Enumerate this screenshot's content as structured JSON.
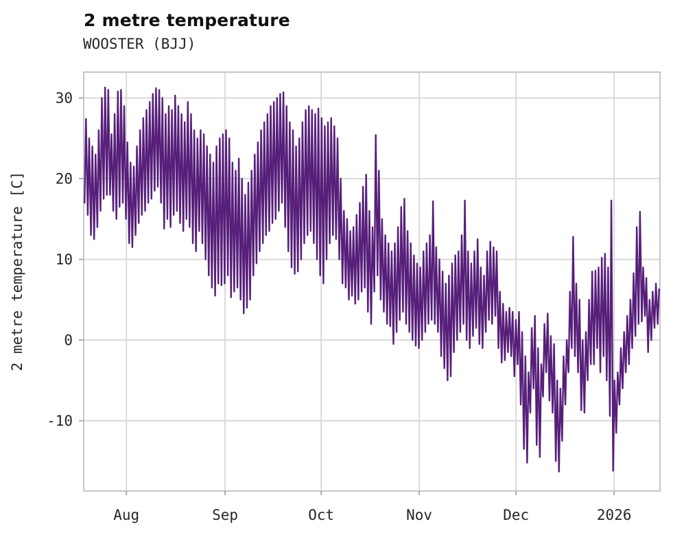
{
  "page": {
    "title": "2 metre temperature",
    "subtitle": "WOOSTER (BJJ)"
  },
  "chart_data": {
    "type": "line",
    "title": "2 metre temperature",
    "subtitle": "WOOSTER (BJJ)",
    "xlabel": "",
    "ylabel": "2 metre temperature [C]",
    "grid": true,
    "legend": "none",
    "line_color": "#571f7a",
    "grid_color": "#d9d9d9",
    "spine_color": "#c6c6c6",
    "tick_color": "#aaaaaa",
    "text_color": "#262626",
    "x_unit": "day index; day 0 = start of plotted period (~19 Jul 2025), ticks mark the 1st of each month, '2026' = 1 Jan 2026",
    "xlim_days": [
      0,
      181
    ],
    "ylim": [
      -18.7,
      33.2
    ],
    "x_tick_days": [
      13.4,
      44.4,
      74.6,
      105.4,
      135.8,
      166.6
    ],
    "x_tick_labels": [
      "Aug",
      "Sep",
      "Oct",
      "Nov",
      "Dec",
      "2026"
    ],
    "y_ticks": [
      30,
      20,
      10,
      0,
      -10
    ],
    "series": [
      {
        "name": "2 metre temperature [C]",
        "sampling": "estimated daily [min,max] envelope read from the plot; rendered as a diurnal zigzag",
        "daily_min_max": [
          [
            17,
            27.4
          ],
          [
            15.5,
            25
          ],
          [
            13,
            24
          ],
          [
            12.5,
            23
          ],
          [
            14,
            26
          ],
          [
            16,
            30
          ],
          [
            17.5,
            31.3
          ],
          [
            18,
            31
          ],
          [
            18,
            25.5
          ],
          [
            16,
            28
          ],
          [
            15,
            30.8
          ],
          [
            16.5,
            31
          ],
          [
            17,
            29
          ],
          [
            15,
            24.5
          ],
          [
            12,
            22
          ],
          [
            11.5,
            21.5
          ],
          [
            13,
            24
          ],
          [
            14.5,
            26
          ],
          [
            15.5,
            27.5
          ],
          [
            16,
            28.5
          ],
          [
            17,
            29.5
          ],
          [
            17.5,
            30.5
          ],
          [
            18.5,
            31.2
          ],
          [
            19,
            31
          ],
          [
            17,
            30
          ],
          [
            13.8,
            28
          ],
          [
            15,
            29
          ],
          [
            14,
            28.5
          ],
          [
            15.5,
            30.3
          ],
          [
            16,
            29
          ],
          [
            14.5,
            28
          ],
          [
            13.5,
            27
          ],
          [
            15,
            29.5
          ],
          [
            14,
            28
          ],
          [
            12,
            26
          ],
          [
            11,
            25
          ],
          [
            13.5,
            26
          ],
          [
            12,
            25.5
          ],
          [
            10,
            24
          ],
          [
            8,
            23
          ],
          [
            6.5,
            22
          ],
          [
            5.5,
            24
          ],
          [
            7,
            25
          ],
          [
            6.8,
            25.5
          ],
          [
            7,
            26
          ],
          [
            8,
            25
          ],
          [
            5.3,
            22
          ],
          [
            6,
            21
          ],
          [
            6.5,
            22.5
          ],
          [
            5,
            20
          ],
          [
            3.3,
            18
          ],
          [
            4,
            19.5
          ],
          [
            5,
            21
          ],
          [
            8,
            23
          ],
          [
            9.5,
            24.5
          ],
          [
            11,
            26
          ],
          [
            12,
            27
          ],
          [
            13,
            28
          ],
          [
            13.5,
            29
          ],
          [
            14.5,
            29.5
          ],
          [
            15,
            30
          ],
          [
            16,
            30.5
          ],
          [
            17,
            30.7
          ],
          [
            14,
            29
          ],
          [
            11,
            27
          ],
          [
            9,
            26
          ],
          [
            8.2,
            24
          ],
          [
            8.5,
            25
          ],
          [
            10,
            27
          ],
          [
            12,
            28.5
          ],
          [
            13,
            29
          ],
          [
            13.5,
            28.5
          ],
          [
            12,
            28
          ],
          [
            10,
            28.7
          ],
          [
            8,
            27.5
          ],
          [
            7,
            26.5
          ],
          [
            10,
            27
          ],
          [
            12,
            27.5
          ],
          [
            13,
            26.5
          ],
          [
            12.5,
            25
          ],
          [
            10,
            20
          ],
          [
            7,
            16
          ],
          [
            6.5,
            15
          ],
          [
            5,
            13.5
          ],
          [
            5.5,
            14
          ],
          [
            4.5,
            15.5
          ],
          [
            5,
            17
          ],
          [
            6,
            19
          ],
          [
            6.5,
            20.5
          ],
          [
            3.5,
            16
          ],
          [
            2,
            14
          ],
          [
            6,
            25.4
          ],
          [
            8,
            21
          ],
          [
            5,
            15
          ],
          [
            3.5,
            13
          ],
          [
            2,
            12
          ],
          [
            1.7,
            11
          ],
          [
            -0.5,
            12
          ],
          [
            1,
            14
          ],
          [
            2.5,
            16.5
          ],
          [
            3.5,
            17.5
          ],
          [
            2,
            13.5
          ],
          [
            1,
            12
          ],
          [
            0,
            10.5
          ],
          [
            -0.7,
            9.5
          ],
          [
            -1,
            9
          ],
          [
            0,
            11
          ],
          [
            1,
            12
          ],
          [
            2,
            13
          ],
          [
            2.5,
            17.2
          ],
          [
            2,
            11.5
          ],
          [
            1,
            10
          ],
          [
            -2,
            8.5
          ],
          [
            -3.5,
            7
          ],
          [
            -5,
            8
          ],
          [
            -4.5,
            9.5
          ],
          [
            -1.5,
            10.5
          ],
          [
            0,
            11
          ],
          [
            1,
            13
          ],
          [
            2,
            17.3
          ],
          [
            0,
            11
          ],
          [
            -1,
            9.5
          ],
          [
            0.5,
            11
          ],
          [
            1.5,
            12.5
          ],
          [
            -0.5,
            9
          ],
          [
            -1,
            8
          ],
          [
            1,
            11
          ],
          [
            2.5,
            12.2
          ],
          [
            2,
            11.5
          ],
          [
            3,
            11
          ],
          [
            -1,
            6
          ],
          [
            -2.8,
            4.5
          ],
          [
            -2.5,
            3.5
          ],
          [
            -1.5,
            4
          ],
          [
            -2,
            3.5
          ],
          [
            -4.5,
            2.5
          ],
          [
            -3,
            3.5
          ],
          [
            -8,
            1
          ],
          [
            -13.5,
            -2
          ],
          [
            -15.2,
            -4
          ],
          [
            -9,
            1.5
          ],
          [
            -6,
            3
          ],
          [
            -13,
            -1
          ],
          [
            -14.5,
            -3
          ],
          [
            -7,
            2
          ],
          [
            -4,
            3.3
          ],
          [
            -7.5,
            0.5
          ],
          [
            -9,
            -0.5
          ],
          [
            -15,
            -5
          ],
          [
            -16.3,
            -6
          ],
          [
            -12.5,
            -2
          ],
          [
            -8,
            0
          ],
          [
            -4,
            6
          ],
          [
            -1,
            12.8
          ],
          [
            -2,
            7
          ],
          [
            -4,
            5
          ],
          [
            -8.7,
            0
          ],
          [
            -9,
            1
          ],
          [
            -5,
            5
          ],
          [
            -3,
            8.5
          ],
          [
            -3,
            8.6
          ],
          [
            -1,
            9
          ],
          [
            -4,
            10.2
          ],
          [
            -2,
            10.7
          ],
          [
            -5,
            9
          ],
          [
            -9.4,
            17.3
          ],
          [
            -16.2,
            -5
          ],
          [
            -11.5,
            -4
          ],
          [
            -8,
            -1
          ],
          [
            -6,
            1
          ],
          [
            -4,
            3
          ],
          [
            -3,
            5
          ],
          [
            -1,
            8.3
          ],
          [
            0.5,
            14
          ],
          [
            2,
            15.9
          ],
          [
            2.3,
            9
          ],
          [
            3,
            7.7
          ],
          [
            -1.5,
            5
          ],
          [
            0,
            6
          ],
          [
            1.5,
            7
          ],
          [
            2,
            6.3
          ]
        ]
      }
    ]
  }
}
